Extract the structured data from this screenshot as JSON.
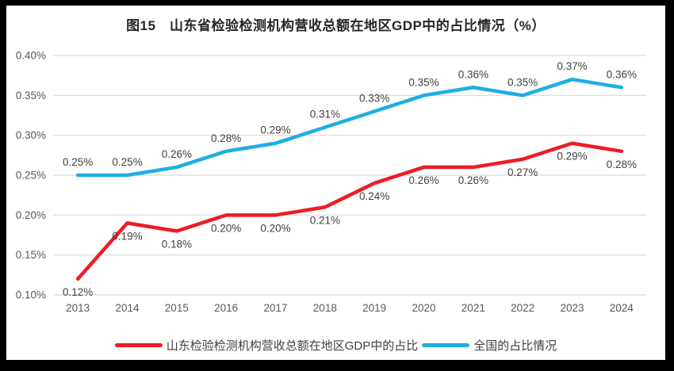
{
  "window": {
    "background": "#000000",
    "card_background": "#FFFFFF"
  },
  "chart_data": {
    "type": "line",
    "title": "图15　山东省检验检测机构营收总额在地区GDP中的占比情况（%）",
    "categories": [
      "2013",
      "2014",
      "2015",
      "2016",
      "2017",
      "2018",
      "2019",
      "2020",
      "2021",
      "2022",
      "2023",
      "2024"
    ],
    "series": [
      {
        "name": "山东检验检测机构营收总额在地区GDP中的占比",
        "color": "#ED1C24",
        "values": [
          0.12,
          0.19,
          0.18,
          0.2,
          0.2,
          0.21,
          0.24,
          0.26,
          0.26,
          0.27,
          0.29,
          0.28
        ],
        "labels": [
          "0.12%",
          "0.19%",
          "0.18%",
          "0.20%",
          "0.20%",
          "0.21%",
          "0.24%",
          "0.26%",
          "0.26%",
          "0.27%",
          "0.29%",
          "0.28%"
        ],
        "label_position": "below"
      },
      {
        "name": "全国的占比情况",
        "color": "#1FADE4",
        "values": [
          0.25,
          0.25,
          0.26,
          0.28,
          0.29,
          0.31,
          0.33,
          0.35,
          0.36,
          0.35,
          0.37,
          0.36
        ],
        "labels": [
          "0.25%",
          "0.25%",
          "0.26%",
          "0.28%",
          "0.29%",
          "0.31%",
          "0.33%",
          "0.35%",
          "0.36%",
          "0.35%",
          "0.37%",
          "0.36%"
        ],
        "label_position": "above"
      }
    ],
    "y_ticks": [
      {
        "label": "0.40%",
        "value": 0.4
      },
      {
        "label": "0.35%",
        "value": 0.35
      },
      {
        "label": "0.30%",
        "value": 0.3
      },
      {
        "label": "0.25%",
        "value": 0.25
      },
      {
        "label": "0.20%",
        "value": 0.2
      },
      {
        "label": "0.15%",
        "value": 0.15
      },
      {
        "label": "0.10%",
        "value": 0.1
      }
    ],
    "ylim": [
      0.1,
      0.4
    ],
    "grid": true,
    "legend_position": "bottom",
    "colors": {
      "gridline": "#D9D9D9",
      "tick_text": "#595959",
      "data_label_text": "#404040",
      "title_text": "#262626"
    }
  }
}
